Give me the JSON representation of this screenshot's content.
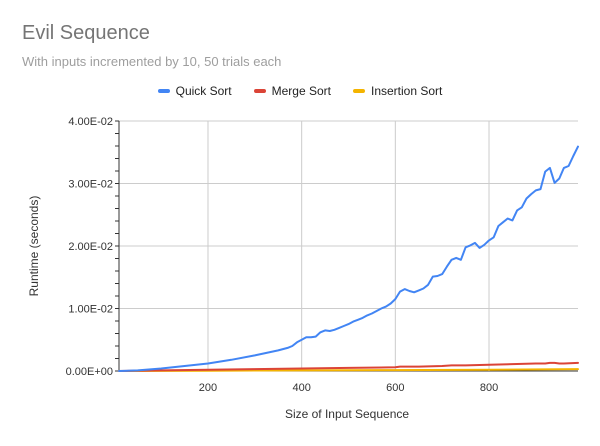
{
  "chart_data": {
    "type": "line",
    "title": "Evil Sequence",
    "subtitle": "With inputs incremented by 10, 50 trials each",
    "xlabel": "Size of Input Sequence",
    "ylabel": "Runtime (seconds)",
    "xlim": [
      10,
      990
    ],
    "ylim": [
      0,
      0.04
    ],
    "xticks": [
      200,
      400,
      600,
      800
    ],
    "xtick_labels": [
      "200",
      "400",
      "600",
      "800"
    ],
    "yticks": [
      0,
      0.01,
      0.02,
      0.03,
      0.04
    ],
    "ytick_labels": [
      "0.00E+00",
      "1.00E-02",
      "2.00E-02",
      "3.00E-02",
      "4.00E-02"
    ],
    "grid": true,
    "legend_position": "top",
    "series": [
      {
        "name": "Quick Sort",
        "color": "#4285f4",
        "x": [
          10,
          50,
          100,
          150,
          200,
          250,
          300,
          350,
          370,
          380,
          390,
          400,
          410,
          420,
          430,
          440,
          450,
          460,
          470,
          480,
          490,
          500,
          510,
          520,
          530,
          540,
          550,
          560,
          570,
          580,
          590,
          600,
          610,
          620,
          630,
          640,
          650,
          660,
          670,
          680,
          690,
          700,
          710,
          720,
          730,
          740,
          750,
          760,
          770,
          780,
          790,
          800,
          810,
          820,
          830,
          840,
          850,
          860,
          870,
          880,
          890,
          900,
          910,
          920,
          930,
          940,
          950,
          960,
          970,
          980,
          990
        ],
        "values": [
          0.0,
          0.0001,
          0.0004,
          0.0008,
          0.0012,
          0.0018,
          0.0025,
          0.0033,
          0.0037,
          0.004,
          0.0046,
          0.005,
          0.0054,
          0.0054,
          0.0055,
          0.0062,
          0.0065,
          0.0064,
          0.0066,
          0.0069,
          0.0072,
          0.0075,
          0.0079,
          0.0082,
          0.0085,
          0.0089,
          0.0092,
          0.0096,
          0.01,
          0.0103,
          0.0108,
          0.0115,
          0.0127,
          0.0131,
          0.0128,
          0.0126,
          0.0129,
          0.0132,
          0.0138,
          0.0151,
          0.0152,
          0.0155,
          0.0167,
          0.0178,
          0.0181,
          0.0178,
          0.0198,
          0.0201,
          0.0205,
          0.0197,
          0.0202,
          0.0209,
          0.0214,
          0.0232,
          0.0238,
          0.0244,
          0.0241,
          0.0257,
          0.0262,
          0.0276,
          0.0283,
          0.0289,
          0.0291,
          0.0319,
          0.0325,
          0.0301,
          0.0308,
          0.0325,
          0.0328,
          0.0344,
          0.0359
        ]
      },
      {
        "name": "Merge Sort",
        "color": "#db4437",
        "x": [
          10,
          100,
          200,
          300,
          400,
          500,
          600,
          610,
          620,
          650,
          700,
          720,
          750,
          800,
          850,
          900,
          920,
          930,
          940,
          950,
          960,
          990
        ],
        "values": [
          0.0,
          0.0001,
          0.0002,
          0.0003,
          0.0004,
          0.0005,
          0.0006,
          0.0007,
          0.0007,
          0.0007,
          0.0008,
          0.0009,
          0.0009,
          0.001,
          0.0011,
          0.0012,
          0.0012,
          0.0013,
          0.0013,
          0.0012,
          0.0012,
          0.0013
        ]
      },
      {
        "name": "Insertion Sort",
        "color": "#f4b400",
        "x": [
          10,
          200,
          400,
          600,
          800,
          990
        ],
        "values": [
          0.0,
          5e-05,
          0.0001,
          0.00015,
          0.0002,
          0.0003
        ]
      }
    ]
  }
}
